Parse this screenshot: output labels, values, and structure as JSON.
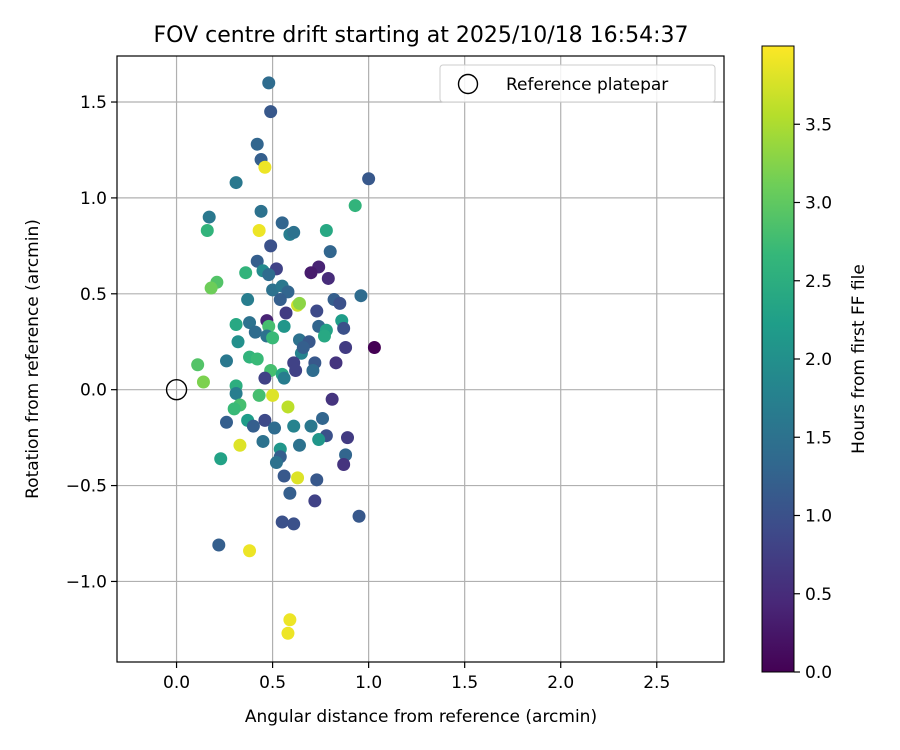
{
  "chart_data": {
    "type": "scatter",
    "title": "FOV centre drift starting at 2025/10/18 16:54:37",
    "xlabel": "Angular distance from reference (arcmin)",
    "ylabel": "Rotation from reference (arcmin)",
    "xlim": [
      -0.31,
      2.85
    ],
    "ylim": [
      -1.42,
      1.74
    ],
    "xticks": [
      0.0,
      0.5,
      1.0,
      1.5,
      2.0,
      2.5
    ],
    "xtick_labels": [
      "0.0",
      "0.5",
      "1.0",
      "1.5",
      "2.0",
      "2.5"
    ],
    "yticks": [
      -1.0,
      -0.5,
      0.0,
      0.5,
      1.0,
      1.5
    ],
    "ytick_labels": [
      "−1.0",
      "−0.5",
      "0.0",
      "0.5",
      "1.0",
      "1.5"
    ],
    "grid": true,
    "legend": {
      "position": "top-right",
      "label": "Reference platepar"
    },
    "reference_point": {
      "x": 0.0,
      "y": 0.0
    },
    "colorbar": {
      "label": "Hours from first FF file",
      "range": [
        0,
        4.0
      ],
      "ticks": [
        0.0,
        0.5,
        1.0,
        1.5,
        2.0,
        2.5,
        3.0,
        3.5
      ],
      "tick_labels": [
        "0.0",
        "0.5",
        "1.0",
        "1.5",
        "2.0",
        "2.5",
        "3.0",
        "3.5"
      ],
      "colormap": "viridis",
      "colormap_stops": [
        "#440154",
        "#482878",
        "#3e4989",
        "#31688e",
        "#26828e",
        "#1f9e89",
        "#35b779",
        "#6ece58",
        "#b5de2b",
        "#fde725"
      ]
    },
    "points": [
      {
        "x": 0.48,
        "y": 1.6,
        "t": 1.4
      },
      {
        "x": 0.49,
        "y": 1.45,
        "t": 1.1
      },
      {
        "x": 0.42,
        "y": 1.28,
        "t": 1.3
      },
      {
        "x": 0.44,
        "y": 1.2,
        "t": 1.2
      },
      {
        "x": 0.46,
        "y": 1.16,
        "t": 3.9
      },
      {
        "x": 0.31,
        "y": 1.08,
        "t": 1.6
      },
      {
        "x": 1.0,
        "y": 1.1,
        "t": 1.1
      },
      {
        "x": 0.93,
        "y": 0.96,
        "t": 2.6
      },
      {
        "x": 0.17,
        "y": 0.9,
        "t": 1.6
      },
      {
        "x": 0.44,
        "y": 0.93,
        "t": 1.5
      },
      {
        "x": 0.55,
        "y": 0.87,
        "t": 1.3
      },
      {
        "x": 0.16,
        "y": 0.83,
        "t": 2.6
      },
      {
        "x": 0.43,
        "y": 0.83,
        "t": 3.9
      },
      {
        "x": 0.59,
        "y": 0.81,
        "t": 1.7
      },
      {
        "x": 0.61,
        "y": 0.82,
        "t": 1.5
      },
      {
        "x": 0.78,
        "y": 0.83,
        "t": 2.4
      },
      {
        "x": 0.49,
        "y": 0.75,
        "t": 1.0
      },
      {
        "x": 0.8,
        "y": 0.72,
        "t": 1.3
      },
      {
        "x": 0.42,
        "y": 0.67,
        "t": 1.2
      },
      {
        "x": 0.74,
        "y": 0.64,
        "t": 0.4
      },
      {
        "x": 0.7,
        "y": 0.61,
        "t": 0.3
      },
      {
        "x": 0.36,
        "y": 0.61,
        "t": 2.6
      },
      {
        "x": 0.45,
        "y": 0.62,
        "t": 1.9
      },
      {
        "x": 0.52,
        "y": 0.63,
        "t": 0.8
      },
      {
        "x": 0.48,
        "y": 0.6,
        "t": 1.4
      },
      {
        "x": 0.21,
        "y": 0.56,
        "t": 2.9
      },
      {
        "x": 0.79,
        "y": 0.58,
        "t": 0.5
      },
      {
        "x": 0.18,
        "y": 0.53,
        "t": 3.1
      },
      {
        "x": 0.5,
        "y": 0.52,
        "t": 1.5
      },
      {
        "x": 0.55,
        "y": 0.54,
        "t": 1.6
      },
      {
        "x": 0.58,
        "y": 0.51,
        "t": 1.3
      },
      {
        "x": 0.37,
        "y": 0.47,
        "t": 1.7
      },
      {
        "x": 0.54,
        "y": 0.47,
        "t": 1.2
      },
      {
        "x": 0.63,
        "y": 0.44,
        "t": 3.7
      },
      {
        "x": 0.64,
        "y": 0.45,
        "t": 3.3
      },
      {
        "x": 0.82,
        "y": 0.47,
        "t": 1.2
      },
      {
        "x": 0.85,
        "y": 0.45,
        "t": 1.0
      },
      {
        "x": 0.96,
        "y": 0.49,
        "t": 1.4
      },
      {
        "x": 0.73,
        "y": 0.41,
        "t": 0.9
      },
      {
        "x": 0.57,
        "y": 0.4,
        "t": 0.7
      },
      {
        "x": 0.47,
        "y": 0.36,
        "t": 0.4
      },
      {
        "x": 0.38,
        "y": 0.35,
        "t": 1.5
      },
      {
        "x": 0.31,
        "y": 0.34,
        "t": 2.4
      },
      {
        "x": 0.48,
        "y": 0.33,
        "t": 2.8
      },
      {
        "x": 0.56,
        "y": 0.33,
        "t": 2.1
      },
      {
        "x": 0.74,
        "y": 0.33,
        "t": 1.3
      },
      {
        "x": 0.78,
        "y": 0.31,
        "t": 2.3
      },
      {
        "x": 0.86,
        "y": 0.36,
        "t": 2.2
      },
      {
        "x": 0.87,
        "y": 0.32,
        "t": 1.0
      },
      {
        "x": 0.41,
        "y": 0.3,
        "t": 1.4
      },
      {
        "x": 0.47,
        "y": 0.28,
        "t": 1.5
      },
      {
        "x": 0.5,
        "y": 0.27,
        "t": 2.7
      },
      {
        "x": 0.64,
        "y": 0.26,
        "t": 1.5
      },
      {
        "x": 0.69,
        "y": 0.25,
        "t": 1.1
      },
      {
        "x": 0.77,
        "y": 0.28,
        "t": 2.4
      },
      {
        "x": 0.32,
        "y": 0.25,
        "t": 2.0
      },
      {
        "x": 0.88,
        "y": 0.22,
        "t": 0.7
      },
      {
        "x": 1.03,
        "y": 0.22,
        "t": 0.0
      },
      {
        "x": 0.65,
        "y": 0.19,
        "t": 1.8
      },
      {
        "x": 0.66,
        "y": 0.22,
        "t": 1.2
      },
      {
        "x": 0.38,
        "y": 0.17,
        "t": 2.6
      },
      {
        "x": 0.42,
        "y": 0.16,
        "t": 2.7
      },
      {
        "x": 0.26,
        "y": 0.15,
        "t": 1.6
      },
      {
        "x": 0.61,
        "y": 0.14,
        "t": 0.8
      },
      {
        "x": 0.72,
        "y": 0.14,
        "t": 1.1
      },
      {
        "x": 0.83,
        "y": 0.14,
        "t": 0.6
      },
      {
        "x": 0.11,
        "y": 0.13,
        "t": 2.9
      },
      {
        "x": 0.49,
        "y": 0.1,
        "t": 2.8
      },
      {
        "x": 0.62,
        "y": 0.1,
        "t": 0.8
      },
      {
        "x": 0.71,
        "y": 0.1,
        "t": 1.4
      },
      {
        "x": 0.55,
        "y": 0.08,
        "t": 2.4
      },
      {
        "x": 0.46,
        "y": 0.06,
        "t": 0.8
      },
      {
        "x": 0.56,
        "y": 0.06,
        "t": 1.7
      },
      {
        "x": 0.14,
        "y": 0.04,
        "t": 3.2
      },
      {
        "x": 0.31,
        "y": 0.02,
        "t": 2.5
      },
      {
        "x": 0.31,
        "y": -0.02,
        "t": 1.7
      },
      {
        "x": 0.43,
        "y": -0.03,
        "t": 2.8
      },
      {
        "x": 0.5,
        "y": -0.03,
        "t": 3.8
      },
      {
        "x": 0.58,
        "y": -0.09,
        "t": 3.6
      },
      {
        "x": 0.33,
        "y": -0.08,
        "t": 2.8
      },
      {
        "x": 0.3,
        "y": -0.1,
        "t": 2.7
      },
      {
        "x": 0.81,
        "y": -0.05,
        "t": 0.6
      },
      {
        "x": 0.37,
        "y": -0.16,
        "t": 2.2
      },
      {
        "x": 0.46,
        "y": -0.16,
        "t": 0.9
      },
      {
        "x": 0.26,
        "y": -0.17,
        "t": 1.2
      },
      {
        "x": 0.4,
        "y": -0.19,
        "t": 1.2
      },
      {
        "x": 0.61,
        "y": -0.19,
        "t": 1.8
      },
      {
        "x": 0.7,
        "y": -0.19,
        "t": 1.6
      },
      {
        "x": 0.76,
        "y": -0.15,
        "t": 1.3
      },
      {
        "x": 0.51,
        "y": -0.2,
        "t": 1.4
      },
      {
        "x": 0.89,
        "y": -0.25,
        "t": 0.7
      },
      {
        "x": 0.78,
        "y": -0.24,
        "t": 1.0
      },
      {
        "x": 0.74,
        "y": -0.26,
        "t": 2.1
      },
      {
        "x": 0.45,
        "y": -0.27,
        "t": 1.5
      },
      {
        "x": 0.33,
        "y": -0.29,
        "t": 3.8
      },
      {
        "x": 0.54,
        "y": -0.31,
        "t": 2.1
      },
      {
        "x": 0.64,
        "y": -0.29,
        "t": 1.5
      },
      {
        "x": 0.54,
        "y": -0.35,
        "t": 1.2
      },
      {
        "x": 0.52,
        "y": -0.38,
        "t": 1.5
      },
      {
        "x": 0.23,
        "y": -0.36,
        "t": 2.3
      },
      {
        "x": 0.88,
        "y": -0.34,
        "t": 1.3
      },
      {
        "x": 0.87,
        "y": -0.39,
        "t": 0.6
      },
      {
        "x": 0.56,
        "y": -0.45,
        "t": 1.1
      },
      {
        "x": 0.63,
        "y": -0.46,
        "t": 3.8
      },
      {
        "x": 0.73,
        "y": -0.47,
        "t": 1.1
      },
      {
        "x": 0.59,
        "y": -0.54,
        "t": 1.2
      },
      {
        "x": 0.72,
        "y": -0.58,
        "t": 0.8
      },
      {
        "x": 0.55,
        "y": -0.69,
        "t": 1.0
      },
      {
        "x": 0.61,
        "y": -0.7,
        "t": 1.0
      },
      {
        "x": 0.95,
        "y": -0.66,
        "t": 1.1
      },
      {
        "x": 0.22,
        "y": -0.81,
        "t": 1.2
      },
      {
        "x": 0.38,
        "y": -0.84,
        "t": 3.9
      },
      {
        "x": 0.59,
        "y": -1.2,
        "t": 3.9
      },
      {
        "x": 0.58,
        "y": -1.27,
        "t": 3.9
      }
    ]
  }
}
